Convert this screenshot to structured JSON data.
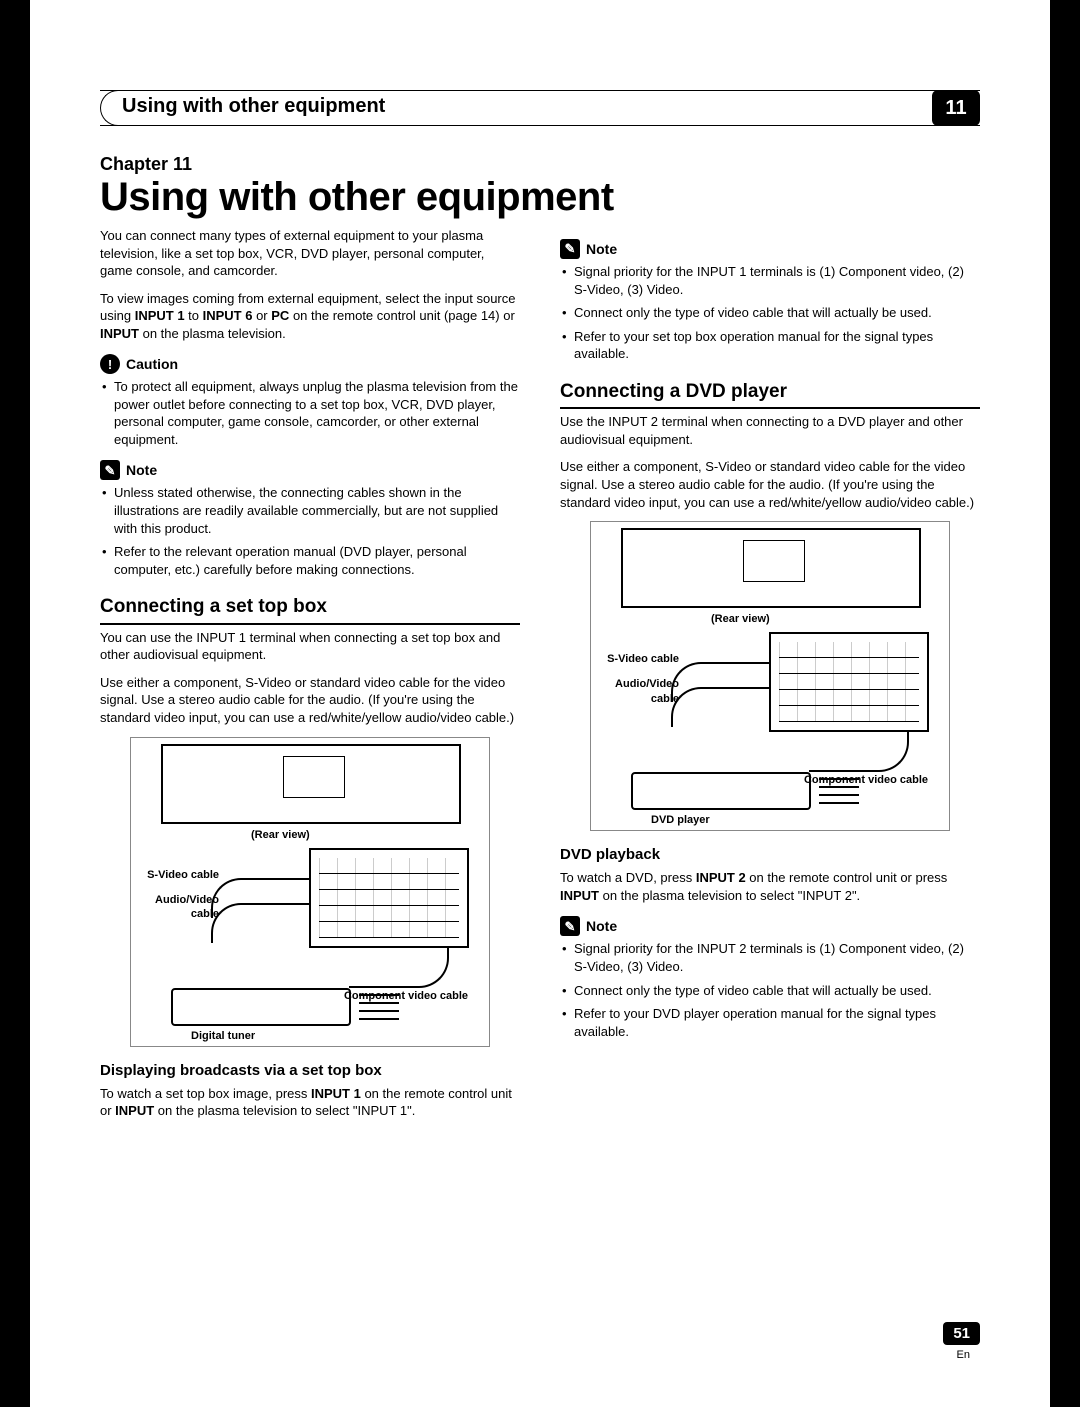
{
  "banner": {
    "title": "Using with other equipment",
    "chapter_number": "11"
  },
  "chapter": {
    "label": "Chapter 11",
    "title": "Using with other equipment"
  },
  "intro": {
    "p1": "You can connect many types of external equipment to your plasma television, like a set top box, VCR, DVD player, personal computer, game console, and camcorder.",
    "p2a": "To view images coming from external equipment, select the input source using ",
    "p2b": "INPUT 1",
    "p2c": " to ",
    "p2d": "INPUT 6",
    "p2e": " or ",
    "p2f": "PC",
    "p2g": " on the remote control unit (page 14) or ",
    "p2h": "INPUT",
    "p2i": " on the plasma television."
  },
  "caution": {
    "label": "Caution",
    "items": [
      "To protect all equipment, always unplug the plasma television from the power outlet before connecting to a set top box, VCR, DVD player, personal computer, game console, camcorder, or other external equipment."
    ]
  },
  "note1": {
    "label": "Note",
    "items": [
      "Unless stated otherwise, the connecting cables shown in the illustrations are readily available commercially, but are not supplied with this product.",
      "Refer to the relevant operation manual (DVD player, personal computer, etc.) carefully before making connections."
    ]
  },
  "stb": {
    "heading": "Connecting a set top box",
    "p1": "You can use the INPUT 1 terminal when connecting a set top box and other audiovisual equipment.",
    "p2": "Use either a component, S-Video or standard video cable for the video signal. Use a stereo audio cable for the audio. (If you're using the standard video input, you can use a red/white/yellow audio/video cable.)",
    "diagram": {
      "rear_view": "(Rear view)",
      "svideo": "S-Video cable",
      "av": "Audio/Video cable",
      "component": "Component video cable",
      "device": "Digital tuner"
    },
    "sub_heading": "Displaying broadcasts via a set top box",
    "sub_a": "To watch a set top box image, press ",
    "sub_b": "INPUT 1",
    "sub_c": " on the remote control unit or ",
    "sub_d": "INPUT",
    "sub_e": " on the plasma television to select \"INPUT 1\"."
  },
  "note2": {
    "label": "Note",
    "items": [
      "Signal priority for the INPUT 1 terminals is (1) Component video, (2) S-Video, (3) Video.",
      "Connect only the type of video cable that will actually be used.",
      "Refer to your set top box operation manual for the signal types available."
    ]
  },
  "dvd": {
    "heading": "Connecting a DVD player",
    "p1": "Use the INPUT 2 terminal when connecting to a DVD player and other audiovisual equipment.",
    "p2": "Use either a component, S-Video or standard video cable for the video signal. Use a stereo audio cable for the audio. (If you're using the standard video input, you can use a red/white/yellow audio/video cable.)",
    "diagram": {
      "rear_view": "(Rear view)",
      "svideo": "S-Video cable",
      "av": "Audio/Video cable",
      "component": "Component video cable",
      "device": "DVD player"
    },
    "sub_heading": "DVD playback",
    "sub_a": "To watch a DVD, press ",
    "sub_b": "INPUT 2",
    "sub_c": " on the remote control unit or press ",
    "sub_d": "INPUT",
    "sub_e": " on the plasma television to select \"INPUT 2\"."
  },
  "note3": {
    "label": "Note",
    "items": [
      "Signal priority for the INPUT 2 terminals is (1) Component video, (2) S-Video, (3) Video.",
      "Connect only the type of video cable that will actually be used.",
      "Refer to your DVD player operation manual for the signal types available."
    ]
  },
  "footer": {
    "page": "51",
    "lang": "En"
  },
  "icons": {
    "caution_glyph": "!",
    "note_glyph": "✎"
  }
}
